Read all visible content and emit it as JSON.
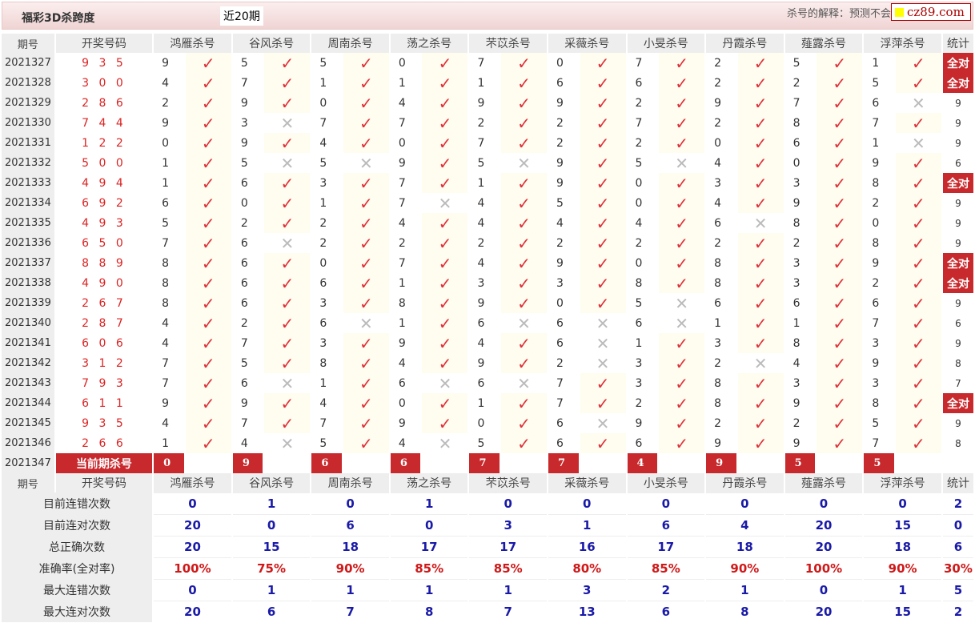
{
  "header": {
    "title": "福彩3D杀跨度",
    "period_select": "近20期",
    "explain": "杀号的解释：预测不会",
    "logo": "cz89.com"
  },
  "columns": {
    "period": "期号",
    "draw": "开奖号码",
    "stat": "统计",
    "killers": [
      "鸿雁杀号",
      "谷风杀号",
      "周南杀号",
      "荡之杀号",
      "芣苡杀号",
      "采薇杀号",
      "小旻杀号",
      "丹霞杀号",
      "薤露杀号",
      "浮萍杀号"
    ]
  },
  "rows": [
    {
      "period": "2021327",
      "draw": "9 3 5",
      "kills": [
        [
          9,
          1
        ],
        [
          5,
          1
        ],
        [
          5,
          1
        ],
        [
          0,
          1
        ],
        [
          7,
          1
        ],
        [
          0,
          1
        ],
        [
          7,
          1
        ],
        [
          2,
          1
        ],
        [
          5,
          1
        ],
        [
          1,
          1
        ]
      ],
      "stat": "全对"
    },
    {
      "period": "2021328",
      "draw": "3 0 0",
      "kills": [
        [
          4,
          1
        ],
        [
          7,
          1
        ],
        [
          1,
          1
        ],
        [
          1,
          1
        ],
        [
          1,
          1
        ],
        [
          6,
          1
        ],
        [
          6,
          1
        ],
        [
          2,
          1
        ],
        [
          2,
          1
        ],
        [
          5,
          1
        ]
      ],
      "stat": "全对"
    },
    {
      "period": "2021329",
      "draw": "2 8 6",
      "kills": [
        [
          2,
          1
        ],
        [
          9,
          1
        ],
        [
          0,
          1
        ],
        [
          4,
          1
        ],
        [
          9,
          1
        ],
        [
          9,
          1
        ],
        [
          2,
          1
        ],
        [
          9,
          1
        ],
        [
          7,
          1
        ],
        [
          6,
          0
        ]
      ],
      "stat": "9"
    },
    {
      "period": "2021330",
      "draw": "7 4 4",
      "kills": [
        [
          9,
          1
        ],
        [
          3,
          0
        ],
        [
          7,
          1
        ],
        [
          7,
          1
        ],
        [
          2,
          1
        ],
        [
          2,
          1
        ],
        [
          7,
          1
        ],
        [
          2,
          1
        ],
        [
          8,
          1
        ],
        [
          7,
          1
        ]
      ],
      "stat": "9"
    },
    {
      "period": "2021331",
      "draw": "1 2 2",
      "kills": [
        [
          0,
          1
        ],
        [
          9,
          1
        ],
        [
          4,
          1
        ],
        [
          0,
          1
        ],
        [
          7,
          1
        ],
        [
          2,
          1
        ],
        [
          2,
          1
        ],
        [
          0,
          1
        ],
        [
          6,
          1
        ],
        [
          1,
          0
        ]
      ],
      "stat": "9"
    },
    {
      "period": "2021332",
      "draw": "5 0 0",
      "kills": [
        [
          1,
          1
        ],
        [
          5,
          0
        ],
        [
          5,
          0
        ],
        [
          9,
          1
        ],
        [
          5,
          0
        ],
        [
          9,
          1
        ],
        [
          5,
          0
        ],
        [
          4,
          1
        ],
        [
          0,
          1
        ],
        [
          9,
          1
        ]
      ],
      "stat": "6"
    },
    {
      "period": "2021333",
      "draw": "4 9 4",
      "kills": [
        [
          1,
          1
        ],
        [
          6,
          1
        ],
        [
          3,
          1
        ],
        [
          7,
          1
        ],
        [
          1,
          1
        ],
        [
          9,
          1
        ],
        [
          0,
          1
        ],
        [
          3,
          1
        ],
        [
          3,
          1
        ],
        [
          8,
          1
        ]
      ],
      "stat": "全对"
    },
    {
      "period": "2021334",
      "draw": "6 9 2",
      "kills": [
        [
          6,
          1
        ],
        [
          0,
          1
        ],
        [
          1,
          1
        ],
        [
          7,
          0
        ],
        [
          4,
          1
        ],
        [
          5,
          1
        ],
        [
          0,
          1
        ],
        [
          4,
          1
        ],
        [
          9,
          1
        ],
        [
          2,
          1
        ]
      ],
      "stat": "9"
    },
    {
      "period": "2021335",
      "draw": "4 9 3",
      "kills": [
        [
          5,
          1
        ],
        [
          2,
          1
        ],
        [
          2,
          1
        ],
        [
          4,
          1
        ],
        [
          4,
          1
        ],
        [
          4,
          1
        ],
        [
          4,
          1
        ],
        [
          6,
          0
        ],
        [
          8,
          1
        ],
        [
          0,
          1
        ]
      ],
      "stat": "9"
    },
    {
      "period": "2021336",
      "draw": "6 5 0",
      "kills": [
        [
          7,
          1
        ],
        [
          6,
          0
        ],
        [
          2,
          1
        ],
        [
          2,
          1
        ],
        [
          2,
          1
        ],
        [
          2,
          1
        ],
        [
          2,
          1
        ],
        [
          2,
          1
        ],
        [
          2,
          1
        ],
        [
          8,
          1
        ]
      ],
      "stat": "9"
    },
    {
      "period": "2021337",
      "draw": "8 8 9",
      "kills": [
        [
          8,
          1
        ],
        [
          6,
          1
        ],
        [
          0,
          1
        ],
        [
          7,
          1
        ],
        [
          4,
          1
        ],
        [
          9,
          1
        ],
        [
          0,
          1
        ],
        [
          8,
          1
        ],
        [
          3,
          1
        ],
        [
          9,
          1
        ]
      ],
      "stat": "全对"
    },
    {
      "period": "2021338",
      "draw": "4 9 0",
      "kills": [
        [
          8,
          1
        ],
        [
          6,
          1
        ],
        [
          6,
          1
        ],
        [
          1,
          1
        ],
        [
          3,
          1
        ],
        [
          3,
          1
        ],
        [
          8,
          1
        ],
        [
          8,
          1
        ],
        [
          3,
          1
        ],
        [
          2,
          1
        ]
      ],
      "stat": "全对"
    },
    {
      "period": "2021339",
      "draw": "2 6 7",
      "kills": [
        [
          8,
          1
        ],
        [
          6,
          1
        ],
        [
          3,
          1
        ],
        [
          8,
          1
        ],
        [
          9,
          1
        ],
        [
          0,
          1
        ],
        [
          5,
          0
        ],
        [
          6,
          1
        ],
        [
          6,
          1
        ],
        [
          6,
          1
        ]
      ],
      "stat": "9"
    },
    {
      "period": "2021340",
      "draw": "2 8 7",
      "kills": [
        [
          4,
          1
        ],
        [
          2,
          1
        ],
        [
          6,
          0
        ],
        [
          1,
          1
        ],
        [
          6,
          0
        ],
        [
          6,
          0
        ],
        [
          6,
          0
        ],
        [
          1,
          1
        ],
        [
          1,
          1
        ],
        [
          7,
          1
        ]
      ],
      "stat": "6"
    },
    {
      "period": "2021341",
      "draw": "6 0 6",
      "kills": [
        [
          4,
          1
        ],
        [
          7,
          1
        ],
        [
          3,
          1
        ],
        [
          9,
          1
        ],
        [
          4,
          1
        ],
        [
          6,
          0
        ],
        [
          1,
          1
        ],
        [
          3,
          1
        ],
        [
          8,
          1
        ],
        [
          3,
          1
        ]
      ],
      "stat": "9"
    },
    {
      "period": "2021342",
      "draw": "3 1 2",
      "kills": [
        [
          7,
          1
        ],
        [
          5,
          1
        ],
        [
          8,
          1
        ],
        [
          4,
          1
        ],
        [
          9,
          1
        ],
        [
          2,
          0
        ],
        [
          3,
          1
        ],
        [
          2,
          0
        ],
        [
          4,
          1
        ],
        [
          9,
          1
        ]
      ],
      "stat": "8"
    },
    {
      "period": "2021343",
      "draw": "7 9 3",
      "kills": [
        [
          7,
          1
        ],
        [
          6,
          0
        ],
        [
          1,
          1
        ],
        [
          6,
          0
        ],
        [
          6,
          0
        ],
        [
          7,
          1
        ],
        [
          3,
          1
        ],
        [
          8,
          1
        ],
        [
          3,
          1
        ],
        [
          3,
          1
        ]
      ],
      "stat": "7"
    },
    {
      "period": "2021344",
      "draw": "6 1 1",
      "kills": [
        [
          9,
          1
        ],
        [
          9,
          1
        ],
        [
          4,
          1
        ],
        [
          0,
          1
        ],
        [
          1,
          1
        ],
        [
          7,
          1
        ],
        [
          2,
          1
        ],
        [
          8,
          1
        ],
        [
          9,
          1
        ],
        [
          8,
          1
        ]
      ],
      "stat": "全对"
    },
    {
      "period": "2021345",
      "draw": "9 3 5",
      "kills": [
        [
          4,
          1
        ],
        [
          7,
          1
        ],
        [
          7,
          1
        ],
        [
          9,
          1
        ],
        [
          0,
          1
        ],
        [
          6,
          0
        ],
        [
          9,
          1
        ],
        [
          2,
          1
        ],
        [
          2,
          1
        ],
        [
          5,
          1
        ]
      ],
      "stat": "9"
    },
    {
      "period": "2021346",
      "draw": "2 6 6",
      "kills": [
        [
          1,
          1
        ],
        [
          4,
          0
        ],
        [
          5,
          1
        ],
        [
          4,
          0
        ],
        [
          5,
          1
        ],
        [
          6,
          1
        ],
        [
          6,
          1
        ],
        [
          9,
          1
        ],
        [
          9,
          1
        ],
        [
          7,
          1
        ]
      ],
      "stat": "8"
    }
  ],
  "current": {
    "period": "2021347",
    "label": "当前期杀号",
    "kills": [
      "0",
      "9",
      "6",
      "6",
      "7",
      "7",
      "4",
      "9",
      "5",
      "5"
    ]
  },
  "summary": [
    {
      "label": "目前连错次数",
      "values": [
        "0",
        "1",
        "0",
        "1",
        "0",
        "0",
        "0",
        "0",
        "0",
        "0"
      ],
      "stat": "2"
    },
    {
      "label": "目前连对次数",
      "values": [
        "20",
        "0",
        "6",
        "0",
        "3",
        "1",
        "6",
        "4",
        "20",
        "15"
      ],
      "stat": "0"
    },
    {
      "label": "总正确次数",
      "values": [
        "20",
        "15",
        "18",
        "17",
        "17",
        "16",
        "17",
        "18",
        "20",
        "18"
      ],
      "stat": "6"
    },
    {
      "label": "准确率(全对率)",
      "values": [
        "100%",
        "75%",
        "90%",
        "85%",
        "85%",
        "80%",
        "85%",
        "90%",
        "100%",
        "90%"
      ],
      "stat": "30%"
    },
    {
      "label": "最大连错次数",
      "values": [
        "0",
        "1",
        "1",
        "1",
        "1",
        "3",
        "2",
        "1",
        "0",
        "1"
      ],
      "stat": "5"
    },
    {
      "label": "最大连对次数",
      "values": [
        "20",
        "6",
        "7",
        "8",
        "7",
        "13",
        "6",
        "8",
        "20",
        "15"
      ],
      "stat": "2"
    }
  ],
  "icons": {
    "ok": "check-icon",
    "bad": "cross-icon"
  },
  "colors": {
    "accent": "#c8292d",
    "summary_value": "#1a1aa8",
    "rate": "#d01818"
  }
}
